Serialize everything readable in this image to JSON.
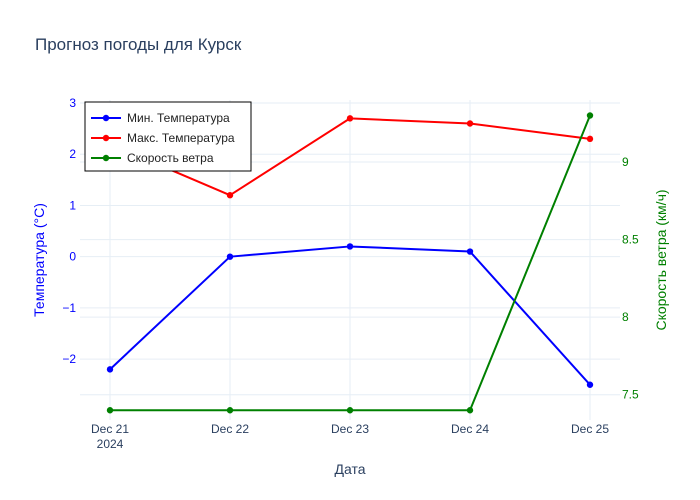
{
  "chart_data": {
    "type": "line",
    "title": "Прогноз погоды для Курск",
    "xlabel": "Дата",
    "ylabel_left": "Температура (°C)",
    "ylabel_right": "Скорость ветра (км/ч)",
    "x": [
      "2024-12-21",
      "2024-12-22",
      "2024-12-23",
      "2024-12-24",
      "2024-12-25"
    ],
    "x_tick_labels": [
      "Dec 21",
      "Dec 22",
      "Dec 23",
      "Dec 24",
      "Dec 25"
    ],
    "x_tick_sublabel": "2024",
    "y_left_range": [
      -2.7,
      3.0
    ],
    "y_left_ticks": [
      -2,
      -1,
      0,
      1,
      2,
      3
    ],
    "y_left_tick_labels": [
      "−2",
      "−1",
      "0",
      "1",
      "2",
      "3"
    ],
    "y_right_range": [
      7.35,
      9.4
    ],
    "y_right_ticks": [
      7.5,
      8,
      8.5,
      9
    ],
    "y_right_tick_labels": [
      "7.5",
      "8",
      "8.5",
      "9"
    ],
    "grid": true,
    "legend_position": "top-left",
    "colors": {
      "left_axis": "#0000ff",
      "right_axis": "#008000",
      "title": "#2a3f5f",
      "xaxis": "#2a3f5f",
      "grid": "#e6eef5"
    },
    "series": [
      {
        "name": "Мин. Температура",
        "axis": "left",
        "color": "#0000ff",
        "values": [
          -2.2,
          0.0,
          0.2,
          0.1,
          -2.5
        ]
      },
      {
        "name": "Макс. Температура",
        "axis": "left",
        "color": "#ff0000",
        "values": [
          2.2,
          1.2,
          2.7,
          2.6,
          2.3
        ]
      },
      {
        "name": "Скорость ветра",
        "axis": "right",
        "color": "#008000",
        "values": [
          7.4,
          7.4,
          7.4,
          7.4,
          9.3
        ]
      }
    ]
  }
}
